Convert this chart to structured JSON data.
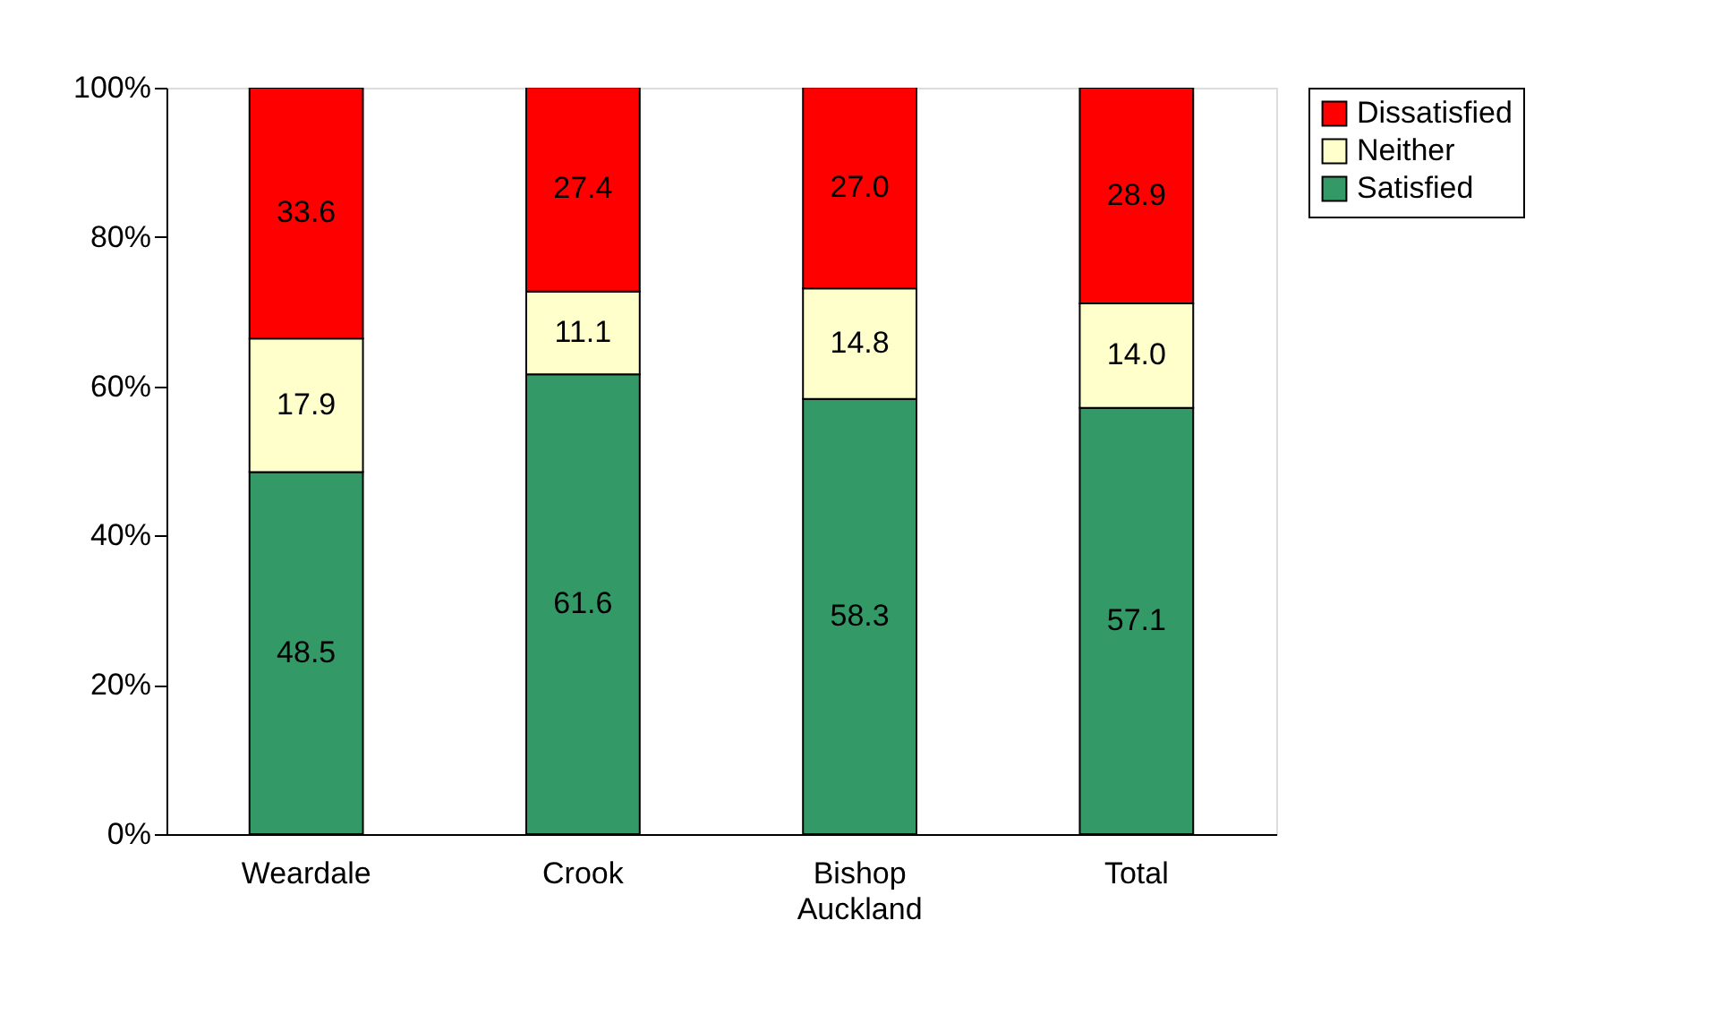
{
  "chart_data": {
    "type": "bar",
    "stacked": true,
    "categories": [
      "Weardale",
      "Crook",
      "Bishop Auckland",
      "Total"
    ],
    "series": [
      {
        "name": "Satisfied",
        "color": "#339966",
        "values": [
          48.5,
          61.6,
          58.3,
          57.1
        ],
        "value_labels": [
          "48.5",
          "61.6",
          "58.3",
          "57.1"
        ]
      },
      {
        "name": "Neither",
        "color": "#ffffcc",
        "values": [
          17.9,
          11.1,
          14.8,
          14.0
        ],
        "value_labels": [
          "17.9",
          "11.1",
          "14.8",
          "14.0"
        ]
      },
      {
        "name": "Dissatisfied",
        "color": "#ff0000",
        "values": [
          33.6,
          27.4,
          27.0,
          28.9
        ],
        "value_labels": [
          "33.6",
          "27.4",
          "27.0",
          "28.9"
        ]
      }
    ],
    "ylim": [
      0,
      100
    ],
    "yticks": [
      {
        "value": 0,
        "label": "0%"
      },
      {
        "value": 20,
        "label": "20%"
      },
      {
        "value": 40,
        "label": "40%"
      },
      {
        "value": 60,
        "label": "60%"
      },
      {
        "value": 80,
        "label": "80%"
      },
      {
        "value": 100,
        "label": "100%"
      }
    ],
    "grid": false,
    "legend": "right"
  }
}
